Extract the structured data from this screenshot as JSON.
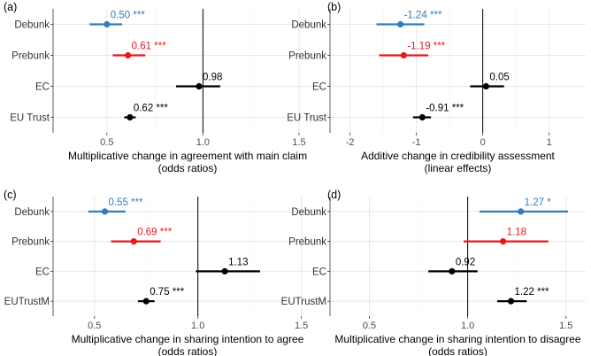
{
  "colors": {
    "blue": "#2e7fc0",
    "red": "#e31a1c",
    "black": "#000000"
  },
  "chart_data": [
    {
      "type": "forest",
      "panel_label": "(a)",
      "xlabel": "Multiplicative change in agreement with main claim",
      "xlabel2": "(odds ratios)",
      "xlim": [
        0.22,
        1.62
      ],
      "xticks": [
        0.5,
        1.0,
        1.5
      ],
      "xtick_labels": [
        "0.5",
        "1.0",
        "1.5"
      ],
      "ref": 1.0,
      "categories": [
        "Debunk",
        "Prebunk",
        "EC",
        "EU Trust"
      ],
      "series": [
        {
          "name": "Debunk",
          "estimate": 0.5,
          "low": 0.41,
          "high": 0.58,
          "label": "0.50 ***",
          "color": "blue"
        },
        {
          "name": "Prebunk",
          "estimate": 0.61,
          "low": 0.53,
          "high": 0.7,
          "label": "0.61 ***",
          "color": "red"
        },
        {
          "name": "EC",
          "estimate": 0.98,
          "low": 0.86,
          "high": 1.09,
          "label": "0.98",
          "color": "black"
        },
        {
          "name": "EU Trust",
          "estimate": 0.62,
          "low": 0.59,
          "high": 0.65,
          "label": "0.62 ***",
          "color": "black"
        }
      ]
    },
    {
      "type": "forest",
      "panel_label": "(b)",
      "xlabel": "Additive change in credibility assessment",
      "xlabel2": "(linear effects)",
      "xlim": [
        -2.3,
        1.55
      ],
      "xticks": [
        -2,
        -1,
        0,
        1
      ],
      "xtick_labels": [
        "-2",
        "-1",
        "0",
        "1"
      ],
      "ref": 0,
      "categories": [
        "Debunk",
        "Prebunk",
        "EC",
        "EU Trust"
      ],
      "series": [
        {
          "name": "Debunk",
          "estimate": -1.24,
          "low": -1.6,
          "high": -0.88,
          "label": "-1.24 ***",
          "color": "blue"
        },
        {
          "name": "Prebunk",
          "estimate": -1.19,
          "low": -1.56,
          "high": -0.82,
          "label": "-1.19 ***",
          "color": "red"
        },
        {
          "name": "EC",
          "estimate": 0.05,
          "low": -0.19,
          "high": 0.32,
          "label": "0.05",
          "color": "black"
        },
        {
          "name": "EU Trust",
          "estimate": -0.91,
          "low": -1.05,
          "high": -0.78,
          "label": "-0.91 ***",
          "color": "black"
        }
      ]
    },
    {
      "type": "forest",
      "panel_label": "(c)",
      "xlabel": "Multiplicative change in sharing intention to agree",
      "xlabel2": "(odds ratios)",
      "xlim": [
        0.3,
        1.6
      ],
      "xticks": [
        0.5,
        1.0,
        1.5
      ],
      "xtick_labels": [
        "0.5",
        "1.0",
        "1.5"
      ],
      "ref": 1.0,
      "categories": [
        "Debunk",
        "Prebunk",
        "EC",
        "EUTrustM"
      ],
      "series": [
        {
          "name": "Debunk",
          "estimate": 0.55,
          "low": 0.47,
          "high": 0.65,
          "label": "0.55 ***",
          "color": "blue"
        },
        {
          "name": "Prebunk",
          "estimate": 0.69,
          "low": 0.58,
          "high": 0.82,
          "label": "0.69 ***",
          "color": "red"
        },
        {
          "name": "EC",
          "estimate": 1.13,
          "low": 0.99,
          "high": 1.3,
          "label": "1.13",
          "color": "black"
        },
        {
          "name": "EUTrustM",
          "estimate": 0.75,
          "low": 0.71,
          "high": 0.79,
          "label": "0.75 ***",
          "color": "black"
        }
      ]
    },
    {
      "type": "forest",
      "panel_label": "(d)",
      "xlabel": "Multiplicative change in sharing intention to disagree",
      "xlabel2": "(odds ratios)",
      "xlim": [
        0.3,
        1.6
      ],
      "xticks": [
        0.5,
        1.0,
        1.5
      ],
      "xtick_labels": [
        "0.5",
        "1.0",
        "1.5"
      ],
      "ref": 1.0,
      "categories": [
        "Debunk",
        "Prebunk",
        "EC",
        "EUTrustM"
      ],
      "series": [
        {
          "name": "Debunk",
          "estimate": 1.27,
          "low": 1.06,
          "high": 1.51,
          "label": "1.27 *",
          "color": "blue"
        },
        {
          "name": "Prebunk",
          "estimate": 1.18,
          "low": 0.98,
          "high": 1.41,
          "label": "1.18",
          "color": "red"
        },
        {
          "name": "EC",
          "estimate": 0.92,
          "low": 0.8,
          "high": 1.05,
          "label": "0.92",
          "color": "black"
        },
        {
          "name": "EUTrustM",
          "estimate": 1.22,
          "low": 1.15,
          "high": 1.3,
          "label": "1.22 ***",
          "color": "black"
        }
      ]
    }
  ]
}
